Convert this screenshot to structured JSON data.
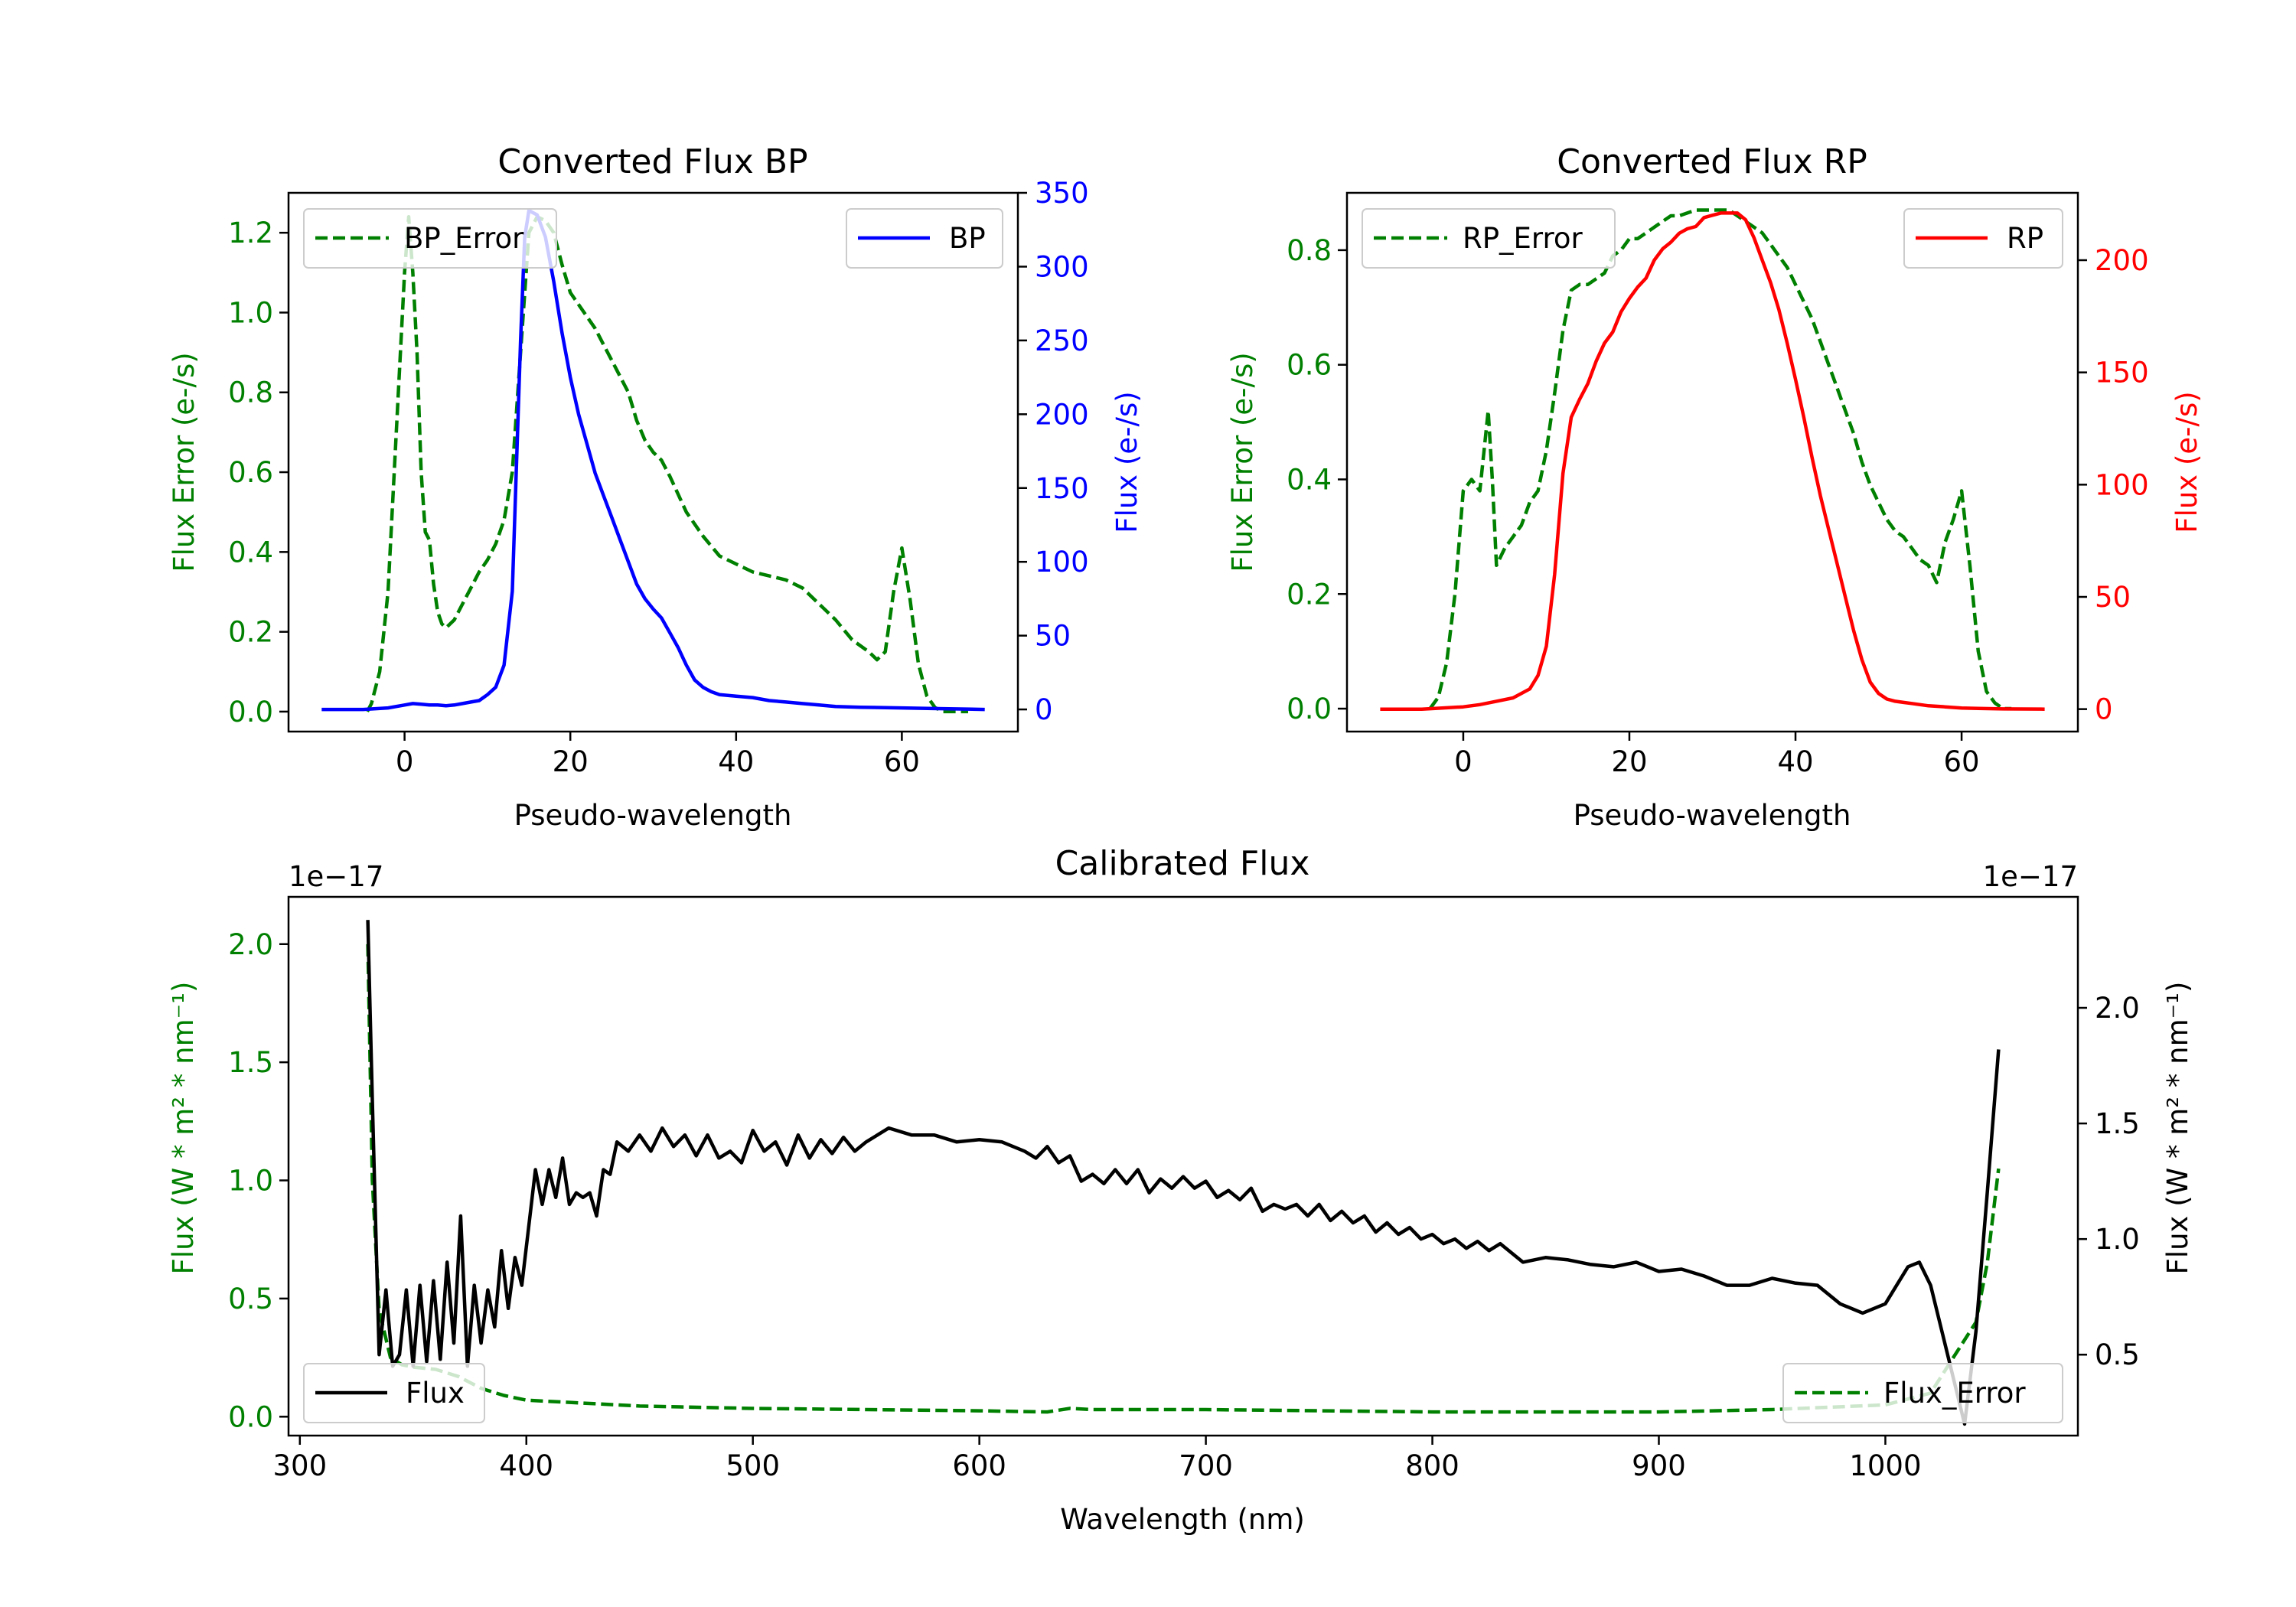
{
  "colors": {
    "green": "#008000",
    "blue": "#0000ff",
    "red": "#ff0000",
    "black": "#000000"
  },
  "chart_data": [
    {
      "type": "line",
      "title": "Converted Flux BP",
      "xlabel": "Pseudo-wavelength",
      "ylabel_left": "Flux Error (e-/s)",
      "ylabel_right": "Flux (e-/s)",
      "xlim": [
        -14,
        74
      ],
      "ylim_left": [
        -0.05,
        1.3
      ],
      "ylim_right": [
        -15,
        350
      ],
      "xticks": [
        0,
        20,
        40,
        60
      ],
      "yticks_left": [
        0.0,
        0.2,
        0.4,
        0.6,
        0.8,
        1.0,
        1.2
      ],
      "yticks_right": [
        0,
        50,
        100,
        150,
        200,
        250,
        300,
        350
      ],
      "legend_left": "BP_Error",
      "legend_right": "BP",
      "series": [
        {
          "name": "BP_Error",
          "axis": "left",
          "style": "dashed",
          "color": "#008000",
          "x": [
            -4.5,
            -4,
            -3,
            -2,
            -1,
            0,
            0.5,
            1,
            1.5,
            2,
            2.5,
            3,
            3.5,
            4,
            4.5,
            5,
            6,
            7,
            8,
            9,
            10,
            11,
            12,
            13,
            14,
            15,
            16,
            17,
            18,
            19,
            20,
            21,
            22,
            23,
            24,
            25,
            26,
            27,
            28,
            29,
            30,
            31,
            32,
            34,
            36,
            38,
            40,
            42,
            44,
            46,
            48,
            50,
            52,
            54,
            56,
            57,
            58,
            59,
            60,
            61,
            62,
            63,
            64,
            65,
            66,
            67,
            68
          ],
          "y": [
            0.0,
            0.02,
            0.1,
            0.3,
            0.7,
            1.1,
            1.24,
            1.1,
            0.9,
            0.6,
            0.45,
            0.43,
            0.32,
            0.25,
            0.22,
            0.21,
            0.23,
            0.27,
            0.31,
            0.35,
            0.38,
            0.42,
            0.48,
            0.6,
            0.9,
            1.2,
            1.24,
            1.23,
            1.2,
            1.12,
            1.05,
            1.02,
            0.99,
            0.96,
            0.92,
            0.88,
            0.84,
            0.8,
            0.73,
            0.68,
            0.65,
            0.63,
            0.59,
            0.5,
            0.44,
            0.39,
            0.37,
            0.35,
            0.34,
            0.33,
            0.31,
            0.27,
            0.23,
            0.18,
            0.15,
            0.13,
            0.15,
            0.3,
            0.41,
            0.28,
            0.12,
            0.04,
            0.01,
            0.0,
            0.0,
            0.0,
            0.0
          ]
        },
        {
          "name": "BP",
          "axis": "right",
          "style": "solid",
          "color": "#0000ff",
          "x": [
            -10,
            -5,
            -2,
            0,
            1,
            2,
            3,
            4,
            5,
            6,
            7,
            8,
            9,
            10,
            11,
            12,
            13,
            14,
            14.5,
            15,
            16,
            17,
            18,
            19,
            20,
            21,
            22,
            23,
            24,
            25,
            26,
            27,
            28,
            29,
            30,
            31,
            32,
            33,
            34,
            35,
            36,
            37,
            38,
            40,
            42,
            44,
            46,
            48,
            50,
            52,
            55,
            60,
            65,
            70
          ],
          "y": [
            0,
            0,
            1,
            3,
            4,
            3.5,
            3,
            3,
            2.5,
            3,
            4,
            5,
            6,
            10,
            15,
            30,
            80,
            250,
            320,
            338,
            335,
            320,
            290,
            255,
            225,
            200,
            180,
            160,
            145,
            130,
            115,
            100,
            85,
            75,
            68,
            62,
            52,
            42,
            30,
            20,
            15,
            12,
            10,
            9,
            8,
            6,
            5,
            4,
            3,
            2,
            1.5,
            1,
            0.5,
            0
          ]
        }
      ]
    },
    {
      "type": "line",
      "title": "Converted Flux RP",
      "xlabel": "Pseudo-wavelength",
      "ylabel_left": "Flux Error (e-/s)",
      "ylabel_right": "Flux (e-/s)",
      "xlim": [
        -14,
        74
      ],
      "ylim_left": [
        -0.04,
        0.9
      ],
      "ylim_right": [
        -10,
        230
      ],
      "xticks": [
        0,
        20,
        40,
        60
      ],
      "yticks_left": [
        0.0,
        0.2,
        0.4,
        0.6,
        0.8
      ],
      "yticks_right": [
        0,
        50,
        100,
        150,
        200
      ],
      "legend_left": "RP_Error",
      "legend_right": "RP",
      "series": [
        {
          "name": "RP_Error",
          "axis": "left",
          "style": "dashed",
          "color": "#008000",
          "x": [
            -4,
            -3,
            -2,
            -1,
            0,
            1,
            2,
            2.5,
            3,
            3.5,
            4,
            5,
            6,
            7,
            8,
            9,
            10,
            11,
            12,
            13,
            14,
            15,
            16,
            17,
            18,
            19,
            20,
            21,
            22,
            23,
            24,
            25,
            26,
            27,
            28,
            29,
            30,
            31,
            32,
            33,
            34,
            35,
            36,
            37,
            38,
            39,
            40,
            41,
            42,
            43,
            44,
            45,
            46,
            47,
            48,
            49,
            50,
            51,
            52,
            53,
            54,
            55,
            56,
            57,
            58,
            59,
            60,
            61,
            62,
            63,
            64,
            65,
            66
          ],
          "y": [
            0.0,
            0.02,
            0.08,
            0.2,
            0.38,
            0.4,
            0.38,
            0.45,
            0.52,
            0.4,
            0.25,
            0.28,
            0.3,
            0.32,
            0.36,
            0.38,
            0.45,
            0.55,
            0.66,
            0.73,
            0.74,
            0.74,
            0.75,
            0.76,
            0.79,
            0.8,
            0.82,
            0.82,
            0.83,
            0.84,
            0.85,
            0.86,
            0.86,
            0.865,
            0.87,
            0.87,
            0.87,
            0.87,
            0.87,
            0.86,
            0.85,
            0.84,
            0.83,
            0.81,
            0.79,
            0.77,
            0.74,
            0.71,
            0.68,
            0.64,
            0.6,
            0.56,
            0.52,
            0.48,
            0.43,
            0.39,
            0.36,
            0.33,
            0.31,
            0.3,
            0.28,
            0.26,
            0.25,
            0.22,
            0.29,
            0.33,
            0.38,
            0.25,
            0.1,
            0.03,
            0.01,
            0.0,
            0.0
          ]
        },
        {
          "name": "RP",
          "axis": "right",
          "style": "solid",
          "color": "#ff0000",
          "x": [
            -10,
            -5,
            0,
            2,
            4,
            6,
            8,
            9,
            10,
            11,
            12,
            13,
            14,
            15,
            16,
            17,
            18,
            19,
            20,
            21,
            22,
            23,
            24,
            25,
            26,
            27,
            28,
            29,
            30,
            31,
            32,
            33,
            34,
            35,
            36,
            37,
            38,
            39,
            40,
            41,
            42,
            43,
            44,
            45,
            46,
            47,
            48,
            49,
            50,
            51,
            52,
            53,
            54,
            55,
            56,
            58,
            60,
            62,
            65,
            70
          ],
          "y": [
            0,
            0,
            1,
            2,
            3.5,
            5,
            9,
            15,
            28,
            60,
            105,
            130,
            138,
            145,
            155,
            163,
            168,
            177,
            183,
            188,
            192,
            200,
            205,
            208,
            212,
            214,
            215,
            219,
            220,
            221,
            221,
            221,
            218,
            210,
            200,
            190,
            178,
            163,
            147,
            130,
            112,
            95,
            80,
            65,
            50,
            35,
            22,
            12,
            7,
            4.5,
            3.5,
            3,
            2.5,
            2,
            1.5,
            1,
            0.5,
            0.3,
            0.1,
            0
          ]
        }
      ]
    },
    {
      "type": "line",
      "title": "Calibrated Flux",
      "xlabel": "Wavelength (nm)",
      "ylabel_left": "Flux (W * m² * nm⁻¹)",
      "ylabel_right": "Flux (W * m² * nm⁻¹)",
      "offset_left": "1e−17",
      "offset_right": "1e−17",
      "xlim": [
        295,
        1085
      ],
      "ylim_left": [
        -0.08,
        2.2
      ],
      "ylim_right": [
        0.15,
        2.48
      ],
      "xticks": [
        300,
        400,
        500,
        600,
        700,
        800,
        900,
        1000
      ],
      "yticks_left": [
        0.0,
        0.5,
        1.0,
        1.5,
        2.0
      ],
      "yticks_right": [
        0.5,
        1.0,
        1.5,
        2.0
      ],
      "legend_left": "Flux",
      "legend_right": "Flux_Error",
      "series": [
        {
          "name": "Flux_Error",
          "axis": "left",
          "style": "dashed",
          "color": "#008000",
          "x": [
            330,
            332,
            335,
            340,
            345,
            350,
            360,
            370,
            380,
            390,
            400,
            420,
            450,
            500,
            550,
            600,
            630,
            640,
            650,
            700,
            800,
            900,
            950,
            1000,
            1020,
            1030,
            1040,
            1045,
            1050
          ],
          "y": [
            2.0,
            1.0,
            0.45,
            0.25,
            0.22,
            0.21,
            0.2,
            0.17,
            0.12,
            0.09,
            0.07,
            0.06,
            0.045,
            0.035,
            0.03,
            0.025,
            0.02,
            0.035,
            0.03,
            0.03,
            0.02,
            0.02,
            0.03,
            0.05,
            0.1,
            0.25,
            0.4,
            0.65,
            1.05
          ]
        },
        {
          "name": "Flux",
          "axis": "right",
          "style": "solid",
          "color": "#000000",
          "x": [
            330,
            332,
            335,
            338,
            341,
            344,
            347,
            350,
            353,
            356,
            359,
            362,
            365,
            368,
            371,
            374,
            377,
            380,
            383,
            386,
            389,
            392,
            395,
            398,
            401,
            404,
            407,
            410,
            413,
            416,
            419,
            422,
            425,
            428,
            431,
            434,
            437,
            440,
            445,
            450,
            455,
            460,
            465,
            470,
            475,
            480,
            485,
            490,
            495,
            500,
            505,
            510,
            515,
            520,
            525,
            530,
            535,
            540,
            545,
            550,
            555,
            560,
            570,
            580,
            590,
            600,
            610,
            620,
            625,
            630,
            635,
            640,
            645,
            650,
            655,
            660,
            665,
            670,
            675,
            680,
            685,
            690,
            695,
            700,
            705,
            710,
            715,
            720,
            725,
            730,
            735,
            740,
            745,
            750,
            755,
            760,
            765,
            770,
            775,
            780,
            785,
            790,
            795,
            800,
            805,
            810,
            815,
            820,
            825,
            830,
            840,
            850,
            860,
            870,
            880,
            890,
            900,
            910,
            920,
            930,
            940,
            950,
            960,
            970,
            980,
            990,
            1000,
            1005,
            1010,
            1015,
            1020,
            1025,
            1030,
            1035,
            1040,
            1045,
            1050
          ],
          "y": [
            2.38,
            1.6,
            0.5,
            0.78,
            0.45,
            0.5,
            0.78,
            0.45,
            0.8,
            0.47,
            0.82,
            0.48,
            0.9,
            0.55,
            1.1,
            0.45,
            0.8,
            0.55,
            0.78,
            0.62,
            0.95,
            0.7,
            0.92,
            0.8,
            1.05,
            1.3,
            1.15,
            1.3,
            1.18,
            1.35,
            1.15,
            1.2,
            1.18,
            1.2,
            1.1,
            1.3,
            1.28,
            1.42,
            1.38,
            1.45,
            1.38,
            1.48,
            1.4,
            1.45,
            1.36,
            1.45,
            1.35,
            1.38,
            1.33,
            1.47,
            1.38,
            1.42,
            1.32,
            1.45,
            1.35,
            1.43,
            1.37,
            1.44,
            1.38,
            1.42,
            1.45,
            1.48,
            1.45,
            1.45,
            1.42,
            1.43,
            1.42,
            1.38,
            1.35,
            1.4,
            1.33,
            1.36,
            1.25,
            1.28,
            1.24,
            1.3,
            1.24,
            1.3,
            1.2,
            1.26,
            1.22,
            1.27,
            1.22,
            1.25,
            1.18,
            1.21,
            1.17,
            1.22,
            1.12,
            1.15,
            1.13,
            1.15,
            1.1,
            1.15,
            1.08,
            1.12,
            1.07,
            1.1,
            1.03,
            1.07,
            1.02,
            1.05,
            1.0,
            1.02,
            0.98,
            1.0,
            0.96,
            0.99,
            0.95,
            0.98,
            0.9,
            0.92,
            0.91,
            0.89,
            0.88,
            0.9,
            0.86,
            0.87,
            0.84,
            0.8,
            0.8,
            0.83,
            0.81,
            0.8,
            0.72,
            0.68,
            0.72,
            0.8,
            0.88,
            0.9,
            0.8,
            0.6,
            0.4,
            0.2,
            0.6,
            1.2,
            1.82
          ]
        }
      ]
    }
  ]
}
